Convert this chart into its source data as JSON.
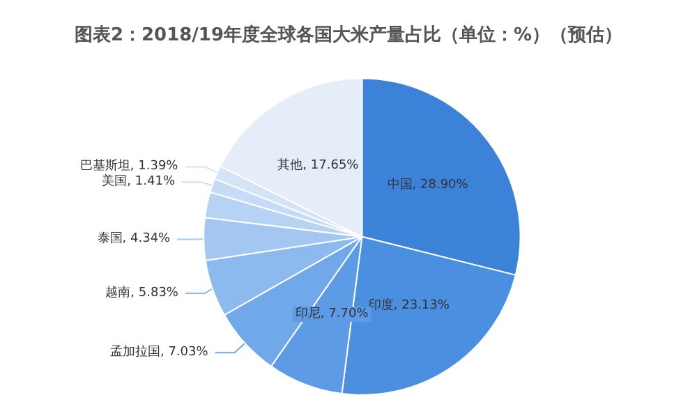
{
  "chart_data": {
    "type": "pie",
    "title": "图表2：2018/19年度全球各国大米产量占比（单位：%）（预估）",
    "categories": [
      "中国",
      "印度",
      "印尼",
      "孟加拉国",
      "越南",
      "泰国",
      null,
      "美国",
      "巴基斯坦",
      "其他"
    ],
    "values": [
      28.9,
      23.13,
      7.7,
      7.03,
      5.83,
      4.34,
      2.62,
      1.41,
      1.39,
      17.65
    ],
    "value_labels": [
      "28.90%",
      "23.13%",
      "7.70%",
      "7.03%",
      "5.83%",
      "4.34%",
      null,
      "1.41%",
      "1.39%",
      "17.65%"
    ],
    "colors": [
      "#3b82d8",
      "#4a8fe0",
      "#5d9be6",
      "#70a8ea",
      "#8cb9ee",
      "#a3c7f1",
      "#b7d3f4",
      "#c6dcf6",
      "#d3e4f7",
      "#e4edf8"
    ]
  }
}
